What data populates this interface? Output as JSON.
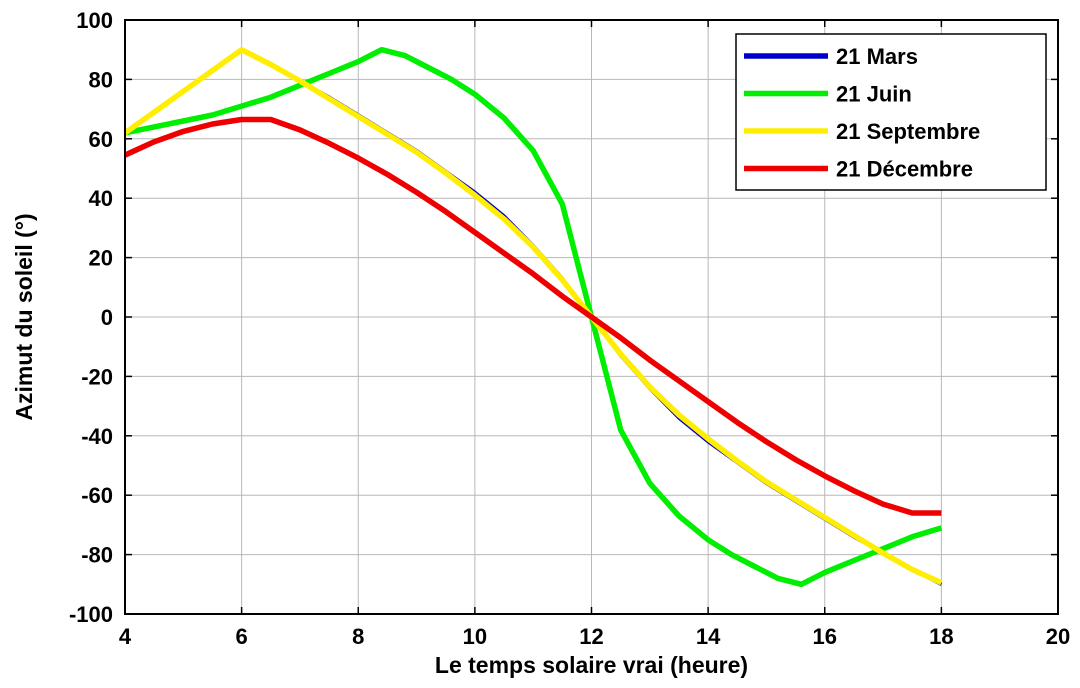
{
  "chart_data": {
    "type": "line",
    "title": "",
    "xlabel": "Le temps solaire vrai (heure)",
    "ylabel": "Azimut du soleil (°)",
    "xlim": [
      4,
      20
    ],
    "ylim": [
      -100,
      100
    ],
    "xticks": [
      4,
      6,
      8,
      10,
      12,
      14,
      16,
      18,
      20
    ],
    "yticks": [
      100,
      80,
      60,
      40,
      20,
      0,
      -20,
      -40,
      -60,
      -80,
      -100
    ],
    "grid": true,
    "legend_position": "top-right",
    "series": [
      {
        "name": "21 Mars",
        "color": "#0000cc",
        "points": [
          [
            4,
            62
          ],
          [
            4.5,
            69
          ],
          [
            5,
            76
          ],
          [
            5.5,
            83
          ],
          [
            6,
            90
          ],
          [
            6.5,
            85
          ],
          [
            7,
            79.5
          ],
          [
            7.5,
            74
          ],
          [
            8,
            68
          ],
          [
            8.5,
            62
          ],
          [
            9,
            56
          ],
          [
            9.5,
            49
          ],
          [
            10,
            42
          ],
          [
            10.5,
            34
          ],
          [
            11,
            24
          ],
          [
            11.5,
            13
          ],
          [
            12,
            0
          ],
          [
            12.5,
            -13
          ],
          [
            13,
            -24
          ],
          [
            13.5,
            -34
          ],
          [
            14,
            -42
          ],
          [
            14.5,
            -49
          ],
          [
            15,
            -56
          ],
          [
            15.5,
            -62
          ],
          [
            16,
            -68
          ],
          [
            16.5,
            -74
          ],
          [
            17,
            -79.5
          ],
          [
            17.5,
            -85
          ],
          [
            18,
            -90
          ]
        ]
      },
      {
        "name": "21 Juin",
        "color": "#00ee00",
        "points": [
          [
            4,
            62
          ],
          [
            4.5,
            64
          ],
          [
            5,
            66
          ],
          [
            5.5,
            68
          ],
          [
            6,
            71
          ],
          [
            6.5,
            74
          ],
          [
            7,
            78
          ],
          [
            7.5,
            82
          ],
          [
            8,
            86
          ],
          [
            8.4,
            90
          ],
          [
            8.8,
            88
          ],
          [
            9.2,
            84
          ],
          [
            9.6,
            80
          ],
          [
            10,
            75
          ],
          [
            10.5,
            67
          ],
          [
            11,
            56
          ],
          [
            11.5,
            38
          ],
          [
            12,
            0
          ],
          [
            12.5,
            -38
          ],
          [
            13,
            -56
          ],
          [
            13.5,
            -67
          ],
          [
            14,
            -75
          ],
          [
            14.4,
            -80
          ],
          [
            14.8,
            -84
          ],
          [
            15.2,
            -88
          ],
          [
            15.6,
            -90
          ],
          [
            16,
            -86
          ],
          [
            16.5,
            -82
          ],
          [
            17,
            -78
          ],
          [
            17.5,
            -74
          ],
          [
            18,
            -71
          ]
        ]
      },
      {
        "name": "21 Septembre",
        "color": "#ffee00",
        "points": [
          [
            4,
            62
          ],
          [
            4.5,
            69
          ],
          [
            5,
            76
          ],
          [
            5.5,
            83
          ],
          [
            6,
            90
          ],
          [
            6.5,
            85
          ],
          [
            7,
            79.5
          ],
          [
            7.5,
            73.5
          ],
          [
            8,
            67.5
          ],
          [
            8.5,
            61.5
          ],
          [
            9,
            55.5
          ],
          [
            9.5,
            48.5
          ],
          [
            10,
            41
          ],
          [
            10.5,
            33
          ],
          [
            11,
            23.5
          ],
          [
            11.5,
            12.5
          ],
          [
            12,
            0
          ],
          [
            12.5,
            -12.5
          ],
          [
            13,
            -23.5
          ],
          [
            13.5,
            -33
          ],
          [
            14,
            -41
          ],
          [
            14.5,
            -48.5
          ],
          [
            15,
            -55.5
          ],
          [
            15.5,
            -61.5
          ],
          [
            16,
            -67.5
          ],
          [
            16.5,
            -73.5
          ],
          [
            17,
            -79.5
          ],
          [
            17.5,
            -85
          ],
          [
            18,
            -89.5
          ]
        ]
      },
      {
        "name": "21 Décembre",
        "color": "#ee0000",
        "points": [
          [
            4,
            54.5
          ],
          [
            4.5,
            59
          ],
          [
            5,
            62.5
          ],
          [
            5.5,
            65
          ],
          [
            6,
            66.5
          ],
          [
            6.5,
            66.5
          ],
          [
            7,
            63
          ],
          [
            7.5,
            58.5
          ],
          [
            8,
            53.5
          ],
          [
            8.5,
            48
          ],
          [
            9,
            42
          ],
          [
            9.5,
            35.5
          ],
          [
            10,
            28.5
          ],
          [
            10.5,
            21.5
          ],
          [
            11,
            14.5
          ],
          [
            11.5,
            7
          ],
          [
            12,
            0
          ],
          [
            12.5,
            -7
          ],
          [
            13,
            -14.5
          ],
          [
            13.5,
            -21.5
          ],
          [
            14,
            -28.5
          ],
          [
            14.5,
            -35.5
          ],
          [
            15,
            -42
          ],
          [
            15.5,
            -48
          ],
          [
            16,
            -53.5
          ],
          [
            16.5,
            -58.5
          ],
          [
            17,
            -63
          ],
          [
            17.5,
            -66
          ],
          [
            18,
            -66
          ]
        ]
      }
    ]
  }
}
